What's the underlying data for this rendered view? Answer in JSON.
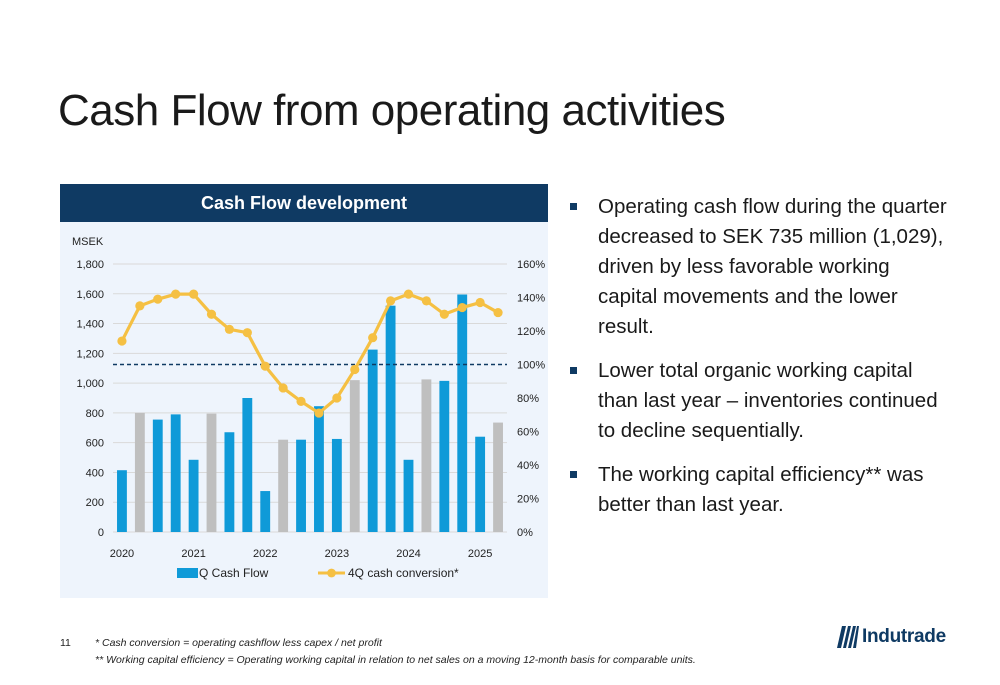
{
  "slide": {
    "title": "Cash Flow from operating activities",
    "page_number": "11",
    "footnotes": [
      "* Cash conversion = operating cashflow less capex / net profit",
      "** Working capital efficiency = Operating working capital in relation to net sales on a moving 12-month basis for comparable units."
    ],
    "logo_text": "Indutrade"
  },
  "bullets": [
    "Operating cash flow during the quarter decreased to SEK 735 million (1,029), driven by less favorable working capital movements and the lower result.",
    "Lower total organic working capital than last year – inventories continued to decline sequentially.",
    "The working capital efficiency** was better than last year."
  ],
  "colors": {
    "header_bg": "#0f3a63",
    "panel_bg": "#eef4fc",
    "bar_blue": "#0f9ad8",
    "bar_grey": "#bfbfbf",
    "line_gold": "#f5c043",
    "reference_line": "#0f3a63",
    "grid": "#d9d9d9"
  },
  "chart_data": {
    "type": "bar",
    "title": "Cash Flow development",
    "ylabel": "MSEK",
    "ylim": [
      0,
      1800
    ],
    "y_ticks": [
      "0",
      "200",
      "400",
      "600",
      "800",
      "1,000",
      "1,200",
      "1,400",
      "1,600",
      "1,800"
    ],
    "y2lim": [
      0,
      160
    ],
    "y2_ticks": [
      "0%",
      "20%",
      "40%",
      "60%",
      "80%",
      "100%",
      "120%",
      "140%",
      "160%"
    ],
    "x_labels": [
      "2020",
      "2021",
      "2022",
      "2023",
      "2024",
      "2025"
    ],
    "categories": [
      "2020 Q1",
      "2020 Q2",
      "2020 Q3",
      "2020 Q4",
      "2021 Q1",
      "2021 Q2",
      "2021 Q3",
      "2021 Q4",
      "2022 Q1",
      "2022 Q2",
      "2022 Q3",
      "2022 Q4",
      "2023 Q1",
      "2023 Q2",
      "2023 Q3",
      "2023 Q4",
      "2024 Q1",
      "2024 Q2",
      "2024 Q3",
      "2024 Q4",
      "2025 Q1",
      "2025 Q2"
    ],
    "series": [
      {
        "name": "Q Cash Flow",
        "axis": "left",
        "values": [
          415,
          800,
          755,
          790,
          485,
          795,
          670,
          900,
          275,
          620,
          620,
          845,
          625,
          1020,
          1225,
          1520,
          485,
          1025,
          1015,
          1595,
          640,
          735
        ],
        "highlighted": [
          true,
          false,
          true,
          true,
          true,
          false,
          true,
          true,
          true,
          false,
          true,
          true,
          true,
          false,
          true,
          true,
          true,
          false,
          true,
          true,
          true,
          false
        ]
      },
      {
        "name": "4Q cash conversion*",
        "axis": "right",
        "values": [
          114,
          135,
          139,
          142,
          142,
          130,
          121,
          119,
          99,
          86,
          78,
          71,
          80,
          97,
          116,
          138,
          142,
          138,
          130,
          134,
          137,
          131
        ]
      }
    ],
    "reference_line": {
      "axis": "right",
      "value": 100
    },
    "grid": true,
    "legend": "bottom"
  }
}
